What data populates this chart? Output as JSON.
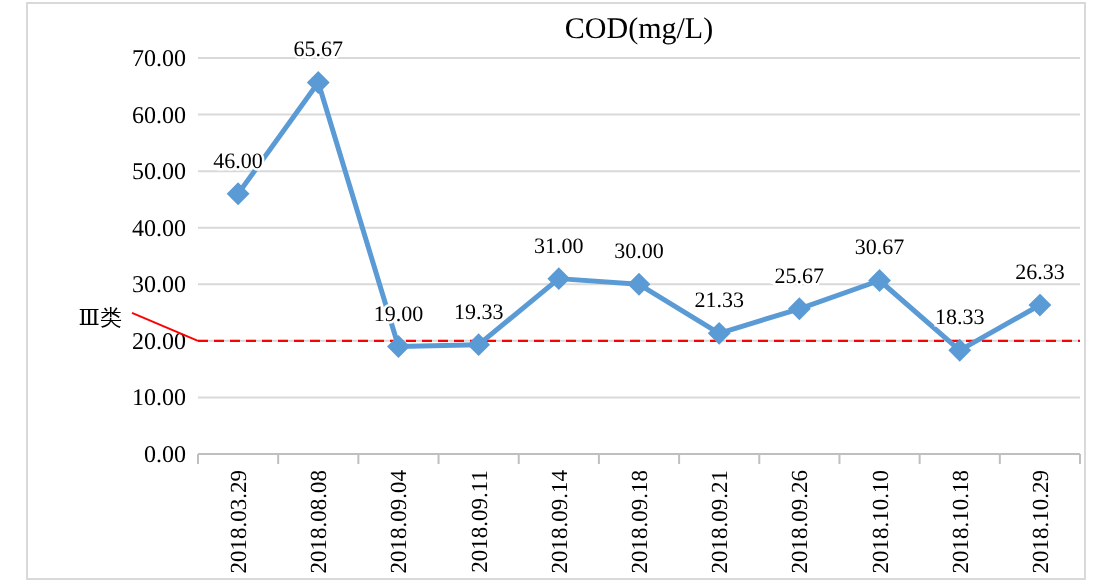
{
  "chart_data": {
    "type": "line",
    "title": "COD(mg/L)",
    "categories": [
      "2018.03.29",
      "2018.08.08",
      "2018.09.04",
      "2018.09.11",
      "2018.09.14",
      "2018.09.18",
      "2018.09.21",
      "2018.09.26",
      "2018.10.10",
      "2018.10.18",
      "2018.10.29"
    ],
    "series": [
      {
        "color": "#5b9bd5",
        "values": [
          46.0,
          65.67,
          19.0,
          19.33,
          31.0,
          30.0,
          21.33,
          25.67,
          30.67,
          18.33,
          26.33
        ],
        "value_labels": [
          "46.00",
          "65.67",
          "19.00",
          "19.33",
          "31.00",
          "30.00",
          "21.33",
          "25.67",
          "30.67",
          "18.33",
          "26.33"
        ]
      }
    ],
    "ylim": [
      0,
      70
    ],
    "yticks": [
      {
        "value": 0,
        "label": "0.00"
      },
      {
        "value": 10,
        "label": "10.00"
      },
      {
        "value": 20,
        "label": "20.00"
      },
      {
        "value": 30,
        "label": "30.00"
      },
      {
        "value": 40,
        "label": "40.00"
      },
      {
        "value": 50,
        "label": "50.00"
      },
      {
        "value": 60,
        "label": "60.00"
      },
      {
        "value": 70,
        "label": "70.00"
      }
    ],
    "grid": "y",
    "marker": "diamond",
    "line_style": "solid",
    "ref_lines": [
      {
        "axis": "y",
        "value": 20,
        "label": "Ⅲ类",
        "color": "#ff0000",
        "line_style": "dashed"
      }
    ]
  }
}
